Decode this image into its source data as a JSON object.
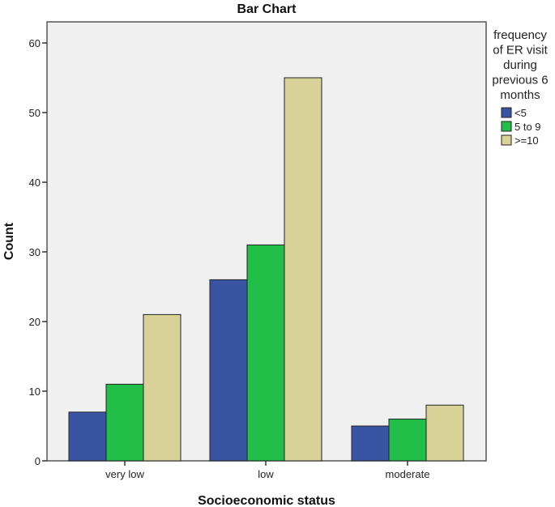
{
  "chart_data": {
    "type": "bar",
    "title": "Bar Chart",
    "xlabel": "Socioeconomic status",
    "ylabel": "Count",
    "ylim": [
      0,
      62
    ],
    "yticks": [
      0,
      10,
      20,
      30,
      40,
      50,
      60
    ],
    "grid": false,
    "categories": [
      "very low",
      "low",
      "moderate"
    ],
    "legend": {
      "title_lines": [
        "frequency",
        "of ER visit",
        "during",
        "previous 6",
        "months"
      ],
      "placement": "right"
    },
    "series": [
      {
        "name": "<5",
        "color": "#3a54a4",
        "values": [
          7,
          26,
          5
        ]
      },
      {
        "name": "5 to 9",
        "color": "#22bf48",
        "values": [
          11,
          31,
          6
        ]
      },
      {
        "name": ">=10",
        "color": "#d8d198",
        "values": [
          21,
          55,
          8
        ]
      }
    ]
  }
}
